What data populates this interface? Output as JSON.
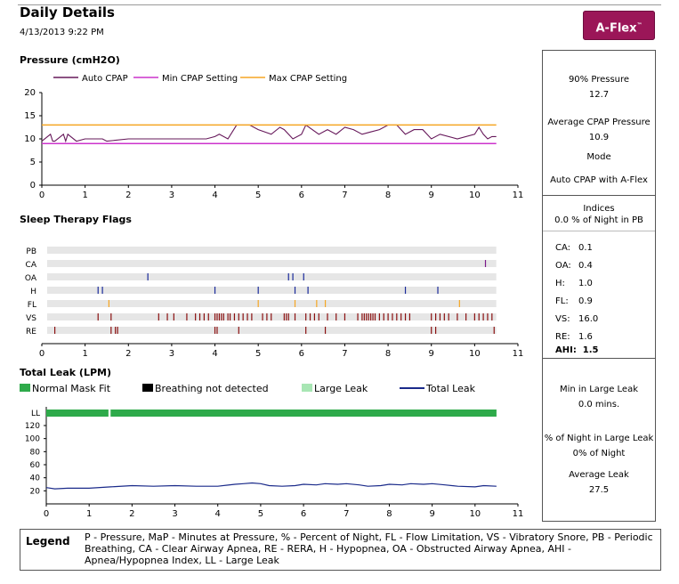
{
  "header": {
    "title": "Daily Details",
    "date": "4/13/2013 9:22 PM",
    "badge": "A-Flex",
    "badge_tm": "™"
  },
  "sections": {
    "pressure": "Pressure (cmH2O)",
    "flags": "Sleep Therapy Flags",
    "leak": "Total Leak (LPM)"
  },
  "right_panel": {
    "p90_label": "90% Pressure",
    "p90_value": "12.7",
    "avg_label": "Average CPAP Pressure",
    "avg_value": "10.9",
    "mode_label": "Mode",
    "mode_value": "Auto CPAP with A-Flex",
    "indices_label": "Indices",
    "pb_text": "0.0 % of Night in PB",
    "indices": [
      {
        "label": "CA:",
        "value": "0.1"
      },
      {
        "label": "OA:",
        "value": "0.4"
      },
      {
        "label": "H:",
        "value": "1.0"
      },
      {
        "label": "FL:",
        "value": "0.9"
      },
      {
        "label": "VS:",
        "value": "16.0"
      },
      {
        "label": "RE:",
        "value": "1.6"
      }
    ],
    "ahi_label": "AHI:",
    "ahi_value": "1.5",
    "large_leak_label": "Min in Large Leak",
    "large_leak_value": "0.0  mins.",
    "pct_ll_label": "% of Night in Large Leak",
    "pct_ll_value": "0% of Night",
    "avg_leak_label": "Average Leak",
    "avg_leak_value": "27.5"
  },
  "legend": {
    "title": "Legend",
    "text": "P - Pressure, MaP - Minutes at Pressure, % - Percent of Night, FL - Flow Limitation, VS - Vibratory Snore, PB - Periodic Breathing, CA - Clear Airway Apnea, RE - RERA, H - Hypopnea, OA - Obstructed Airway Apnea, AHI - Apnea/Hypopnea Index, LL - Large Leak"
  },
  "colors": {
    "auto_cpap": "#66185a",
    "min_cpap": "#cc33cc",
    "max_cpap": "#f5a623",
    "leak": "#1a2a8a",
    "ll_bar": "#2eaa4a",
    "brand": "#9b1658"
  },
  "chart_data": [
    {
      "type": "line",
      "title": "Pressure (cmH2O)",
      "ylim": [
        0,
        20
      ],
      "yticks": [
        0,
        5,
        10,
        15,
        20
      ],
      "xlim": [
        0,
        11
      ],
      "xticks": [
        0,
        1,
        2,
        3,
        4,
        5,
        6,
        7,
        8,
        9,
        10,
        11
      ],
      "series": [
        {
          "name": "Auto CPAP",
          "color": "#66185a",
          "x": [
            0,
            0.2,
            0.25,
            0.3,
            0.5,
            0.55,
            0.6,
            0.8,
            1.0,
            1.4,
            1.5,
            2.0,
            2.4,
            2.6,
            3.0,
            3.4,
            3.8,
            4.0,
            4.1,
            4.3,
            4.5,
            4.8,
            5.0,
            5.3,
            5.5,
            5.6,
            5.8,
            6.0,
            6.1,
            6.4,
            6.6,
            6.8,
            7.0,
            7.2,
            7.4,
            7.6,
            7.8,
            8.0,
            8.2,
            8.4,
            8.6,
            8.8,
            9.0,
            9.2,
            9.6,
            10.0,
            10.1,
            10.2,
            10.3,
            10.4,
            10.5
          ],
          "y": [
            9.5,
            11,
            9.5,
            9.5,
            11,
            9.5,
            11,
            9.5,
            10,
            10,
            9.5,
            10,
            10,
            10,
            10,
            10,
            10,
            10.5,
            11,
            10,
            13,
            13,
            12,
            11,
            12.5,
            12,
            10,
            11,
            13,
            11,
            12,
            11,
            12.5,
            12,
            11,
            11.5,
            12,
            13,
            13,
            11,
            12,
            12,
            10,
            11,
            10,
            11,
            12.5,
            11,
            10,
            10.5,
            10.5
          ]
        },
        {
          "name": "Min CPAP Setting",
          "color": "#cc33cc",
          "x": [
            0,
            10.5
          ],
          "y": [
            9,
            9
          ]
        },
        {
          "name": "Max CPAP Setting",
          "color": "#f5a623",
          "x": [
            0,
            10.5
          ],
          "y": [
            13,
            13
          ]
        }
      ]
    },
    {
      "type": "scatter",
      "title": "Sleep Therapy Flags",
      "categories": [
        "PB",
        "CA",
        "OA",
        "H",
        "FL",
        "VS",
        "RE"
      ],
      "xlim": [
        0,
        11
      ],
      "xticks": [
        0,
        1,
        2,
        3,
        4,
        5,
        6,
        7,
        8,
        9,
        10,
        11
      ],
      "events": {
        "PB": [],
        "CA": [
          10.25
        ],
        "OA": [
          2.45,
          5.7,
          5.8,
          6.05
        ],
        "H": [
          1.3,
          1.4,
          4.0,
          5.0,
          5.85,
          6.15,
          8.4,
          9.15
        ],
        "FL": [
          1.55,
          5.0,
          5.85,
          6.35,
          6.55,
          9.65
        ],
        "VS": [
          1.3,
          1.6,
          2.7,
          2.9,
          3.05,
          3.35,
          3.55,
          3.65,
          3.75,
          3.85,
          4.0,
          4.05,
          4.1,
          4.15,
          4.2,
          4.3,
          4.35,
          4.45,
          4.55,
          4.65,
          4.75,
          4.85,
          5.1,
          5.2,
          5.3,
          5.6,
          5.65,
          5.7,
          5.85,
          6.1,
          6.2,
          6.3,
          6.4,
          6.6,
          6.8,
          7.0,
          7.3,
          7.4,
          7.45,
          7.5,
          7.55,
          7.6,
          7.65,
          7.7,
          7.8,
          7.9,
          8.0,
          8.1,
          8.2,
          8.3,
          8.4,
          8.5,
          9.0,
          9.1,
          9.2,
          9.3,
          9.4,
          9.6,
          9.8,
          10.0,
          10.1,
          10.2,
          10.3,
          10.4
        ],
        "RE": [
          0.3,
          1.6,
          1.7,
          1.75,
          4.0,
          4.05,
          4.55,
          6.1,
          6.55,
          9.0,
          9.1,
          10.45
        ]
      }
    },
    {
      "type": "line",
      "title": "Total Leak (LPM)",
      "legend": [
        "Normal Mask Fit",
        "Breathing not detected",
        "Large Leak",
        "Total Leak"
      ],
      "ylim": [
        0,
        120
      ],
      "yticks": [
        20,
        40,
        60,
        80,
        100,
        120
      ],
      "xlim": [
        0,
        11
      ],
      "xticks": [
        0,
        1,
        2,
        3,
        4,
        5,
        6,
        7,
        8,
        9,
        10,
        11
      ],
      "ll_row": "LL",
      "normal_mask_fit_ranges": [
        [
          0,
          1.45
        ],
        [
          1.5,
          10.5
        ]
      ],
      "series": [
        {
          "name": "Total Leak",
          "color": "#1a2a8a",
          "x": [
            0,
            0.2,
            0.5,
            1.0,
            1.5,
            2.0,
            2.5,
            3.0,
            3.5,
            4.0,
            4.4,
            4.6,
            4.8,
            5.0,
            5.2,
            5.5,
            5.8,
            6.0,
            6.3,
            6.5,
            6.8,
            7.0,
            7.3,
            7.5,
            7.8,
            8.0,
            8.3,
            8.5,
            8.8,
            9.0,
            9.3,
            9.6,
            10.0,
            10.2,
            10.5
          ],
          "y": [
            25,
            23,
            24,
            24,
            26,
            28,
            27,
            28,
            27,
            27,
            30,
            31,
            32,
            31,
            28,
            27,
            28,
            30,
            29,
            31,
            30,
            31,
            29,
            27,
            28,
            30,
            29,
            31,
            30,
            31,
            29,
            27,
            26,
            28,
            27
          ]
        }
      ]
    }
  ]
}
